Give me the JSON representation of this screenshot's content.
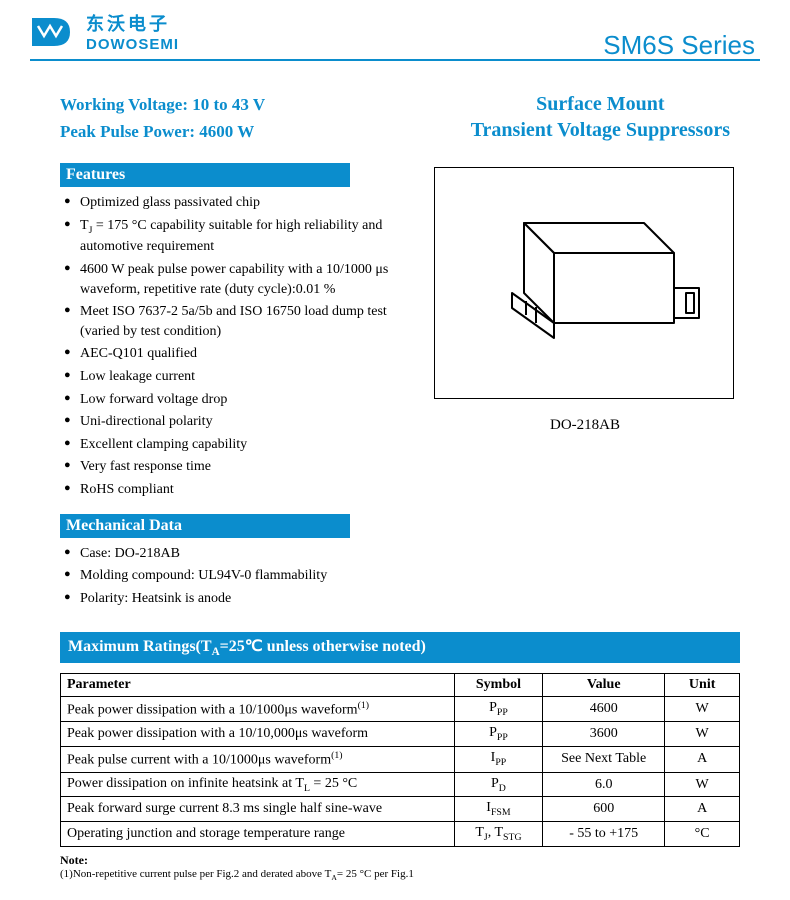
{
  "header": {
    "logo_cn": "东沃电子",
    "logo_en": "DOWOSEMI",
    "series": "SM6S Series",
    "brand_color": "#0b8dcd"
  },
  "top": {
    "working_voltage": "Working Voltage: 10 to 43 V",
    "peak_power": "Peak Pulse Power: 4600 W",
    "title_line1": "Surface Mount",
    "title_line2": "Transient Voltage Suppressors"
  },
  "features": {
    "heading": "Features",
    "items": [
      "Optimized glass passivated chip",
      "T_J = 175 °C capability suitable for high reliability and automotive requirement",
      "4600 W peak pulse power capability with a 10/1000 μs waveform, repetitive rate (duty cycle):0.01 %",
      "Meet ISO 7637-2 5a/5b and ISO 16750 load dump test (varied by test condition)",
      "AEC-Q101 qualified",
      "Low leakage current",
      "Low forward voltage drop",
      "Uni-directional polarity",
      "Excellent clamping capability",
      "Very fast response time",
      "RoHS compliant"
    ]
  },
  "mechanical": {
    "heading": "Mechanical Data",
    "items": [
      "Case: DO-218AB",
      "Molding compound: UL94V-0 flammability",
      "Polarity: Heatsink is anode"
    ]
  },
  "package": {
    "label": "DO-218AB"
  },
  "ratings": {
    "heading": "Maximum Ratings(T_A=25℃ unless otherwise noted)",
    "columns": [
      "Parameter",
      "Symbol",
      "Value",
      "Unit"
    ],
    "rows": [
      {
        "param": "Peak power dissipation with a 10/1000μs waveform",
        "sup": "(1)",
        "symbol": "P_PP",
        "value": "4600",
        "unit": "W"
      },
      {
        "param": "Peak power dissipation with a 10/10,000μs waveform",
        "sup": "",
        "symbol": "P_PP",
        "value": "3600",
        "unit": "W"
      },
      {
        "param": "Peak pulse current with a 10/1000μs waveform",
        "sup": "(1)",
        "symbol": "I_PP",
        "value": "See Next Table",
        "unit": "A"
      },
      {
        "param": "Power dissipation on infinite heatsink at T_L = 25 °C",
        "sup": "",
        "symbol": "P_D",
        "value": "6.0",
        "unit": "W"
      },
      {
        "param": "Peak forward surge current 8.3 ms single half sine-wave",
        "sup": "",
        "symbol": "I_FSM",
        "value": "600",
        "unit": "A"
      },
      {
        "param": "Operating junction and storage temperature range",
        "sup": "",
        "symbol": "T_J, T_STG",
        "value": "- 55 to +175",
        "unit": "°C"
      }
    ]
  },
  "note": {
    "label": "Note:",
    "text": "(1)Non-repetitive current pulse per Fig.2 and derated above T_A= 25 °C per Fig.1"
  }
}
